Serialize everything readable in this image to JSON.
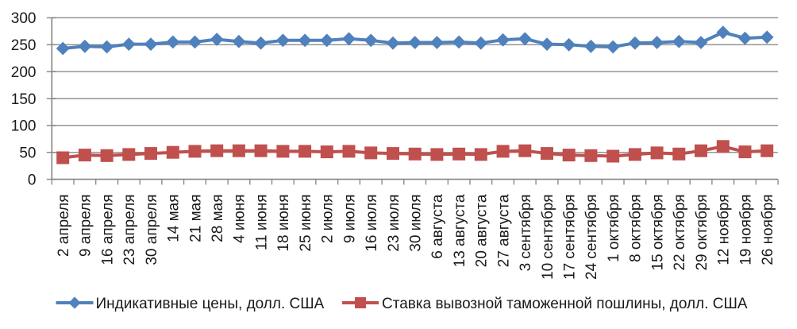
{
  "chart_data": {
    "type": "line",
    "title": "",
    "xlabel": "",
    "ylabel": "",
    "ylim": [
      0,
      300
    ],
    "ytick_step": 50,
    "yticks": [
      0,
      50,
      100,
      150,
      200,
      250,
      300
    ],
    "grid": true,
    "legend_position": "bottom",
    "colors": {
      "series1": "#4f81bd",
      "series2": "#c0504d",
      "axis": "#848484",
      "gridline": "#949494",
      "text": "#1a1a1a",
      "background": "#ffffff"
    },
    "categories": [
      "2 апреля",
      "9 апреля",
      "16 апреля",
      "23 апреля",
      "30 апреля",
      "14 мая",
      "21 мая",
      "28 мая",
      "4 июня",
      "11 июня",
      "18 июня",
      "25 июня",
      "2 июля",
      "9 июля",
      "16 июля",
      "23 июля",
      "30 июля",
      "6 августа",
      "13 августа",
      "20 августа",
      "27 августа",
      "3 сентября",
      "10 сентября",
      "17 сентября",
      "24 сентября",
      "1 октября",
      "8 октября",
      "15 октября",
      "22 октября",
      "29 октября",
      "12 ноября",
      "19 ноября",
      "26 ноября"
    ],
    "series": [
      {
        "name": "Индикативные цены, долл. США",
        "marker": "diamond",
        "color": "#4f81bd",
        "values": [
          243,
          247,
          246,
          251,
          251,
          255,
          255,
          260,
          256,
          253,
          258,
          258,
          258,
          261,
          258,
          253,
          254,
          254,
          255,
          253,
          259,
          261,
          251,
          250,
          247,
          246,
          253,
          254,
          256,
          254,
          273,
          262,
          264
        ]
      },
      {
        "name": "Ставка вывозной таможенной пошлины, долл. США",
        "marker": "square",
        "color": "#c0504d",
        "values": [
          40,
          45,
          44,
          46,
          48,
          50,
          52,
          53,
          53,
          53,
          52,
          52,
          51,
          52,
          49,
          48,
          47,
          46,
          47,
          46,
          52,
          53,
          48,
          45,
          44,
          43,
          46,
          49,
          47,
          53,
          61,
          51,
          53
        ]
      }
    ]
  }
}
